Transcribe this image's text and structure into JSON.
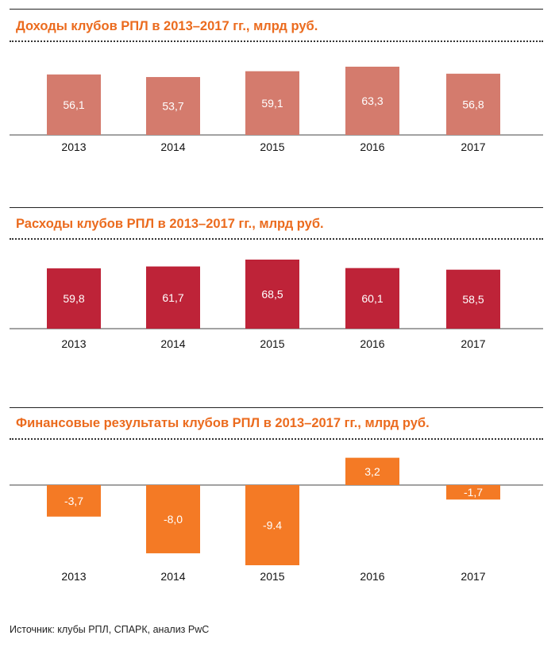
{
  "charts": [
    {
      "title": "Доходы клубов РПЛ в 2013–2017 гг., млрд руб.",
      "color": "#d47b6d",
      "value_color": "#ffffff",
      "year_color": "#111111"
    },
    {
      "title": "Расходы клубов РПЛ в 2013–2017 гг., млрд руб.",
      "color": "#be2338",
      "value_color": "#ffffff",
      "year_color": "#111111"
    },
    {
      "title": "Финансовые результаты клубов РПЛ в 2013–2017 гг., млрд руб.",
      "color": "#f47a25",
      "value_color": "#ffffff",
      "year_color": "#111111"
    }
  ],
  "chart_data": [
    {
      "type": "bar",
      "title": "Доходы клубов РПЛ в 2013–2017 гг., млрд руб.",
      "categories": [
        "2013",
        "2014",
        "2015",
        "2016",
        "2017"
      ],
      "values": [
        56.1,
        53.7,
        59.1,
        63.3,
        56.8
      ],
      "labels": [
        "56,1",
        "53,7",
        "59,1",
        "63,3",
        "56,8"
      ],
      "ylim": [
        0,
        70
      ],
      "grid": false,
      "legend": "none"
    },
    {
      "type": "bar",
      "title": "Расходы клубов РПЛ в 2013–2017 гг., млрд руб.",
      "categories": [
        "2013",
        "2014",
        "2015",
        "2016",
        "2017"
      ],
      "values": [
        59.8,
        61.7,
        68.5,
        60.1,
        58.5
      ],
      "labels": [
        "59,8",
        "61,7",
        "68,5",
        "60,1",
        "58,5"
      ],
      "ylim": [
        0,
        70
      ],
      "grid": false,
      "legend": "none"
    },
    {
      "type": "bar",
      "title": "Финансовые результаты клубов РПЛ в 2013–2017 гг., млрд руб.",
      "categories": [
        "2013",
        "2014",
        "2015",
        "2016",
        "2017"
      ],
      "values": [
        -3.7,
        -8.0,
        -9.4,
        3.2,
        -1.7
      ],
      "labels": [
        "-3,7",
        "-8,0",
        "-9.4",
        "3,2",
        "-1,7"
      ],
      "ylim": [
        -10,
        4
      ],
      "grid": false,
      "legend": "none"
    }
  ],
  "source": "Источник: клубы РПЛ, СПАРК, анализ PwC"
}
